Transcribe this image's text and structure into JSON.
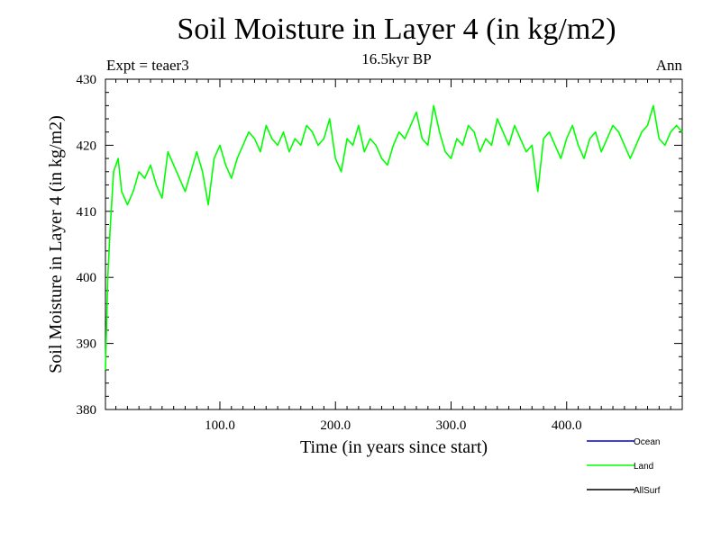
{
  "chart_data": {
    "type": "line",
    "title": "Soil Moisture in Layer 4 (in kg/m2)",
    "subtitle": "16.5kyr BP",
    "experiment": "Expt = teaer3",
    "season": "Ann",
    "xlabel": "Time (in years since start)",
    "ylabel": "Soil Moisture in Layer 4 (in kg/m2)",
    "xlim": [
      1,
      500
    ],
    "ylim": [
      380,
      430
    ],
    "xticks": [
      100,
      200,
      300,
      400
    ],
    "xtick_labels": [
      "100.0",
      "200.0",
      "300.0",
      "400.0"
    ],
    "yticks": [
      380,
      390,
      400,
      410,
      420,
      430
    ],
    "ytick_labels": [
      "380",
      "390",
      "400",
      "410",
      "420",
      "430"
    ],
    "legend": [
      "Ocean",
      "Land",
      "AllSurf"
    ],
    "legend_position": "bottom-right",
    "series": [
      {
        "name": "Land",
        "color": "#00ff00",
        "x": [
          1,
          3,
          5,
          8,
          12,
          15,
          20,
          25,
          30,
          35,
          40,
          45,
          50,
          55,
          60,
          65,
          70,
          75,
          80,
          85,
          90,
          95,
          100,
          105,
          110,
          115,
          120,
          125,
          130,
          135,
          140,
          145,
          150,
          155,
          160,
          165,
          170,
          175,
          180,
          185,
          190,
          195,
          200,
          205,
          210,
          215,
          220,
          225,
          230,
          235,
          240,
          245,
          250,
          255,
          260,
          265,
          270,
          275,
          280,
          285,
          290,
          295,
          300,
          305,
          310,
          315,
          320,
          325,
          330,
          335,
          340,
          345,
          350,
          355,
          360,
          365,
          370,
          375,
          380,
          385,
          390,
          395,
          400,
          405,
          410,
          415,
          420,
          425,
          430,
          435,
          440,
          445,
          450,
          455,
          460,
          465,
          470,
          475,
          480,
          485,
          490,
          495,
          500
        ],
        "values": [
          386,
          400,
          407,
          416,
          418,
          413,
          411,
          413,
          416,
          415,
          417,
          414,
          412,
          419,
          417,
          415,
          413,
          416,
          419,
          416,
          411,
          418,
          420,
          417,
          415,
          418,
          420,
          422,
          421,
          419,
          423,
          421,
          420,
          422,
          419,
          421,
          420,
          423,
          422,
          420,
          421,
          424,
          418,
          416,
          421,
          420,
          423,
          419,
          421,
          420,
          418,
          417,
          420,
          422,
          421,
          423,
          425,
          421,
          420,
          426,
          422,
          419,
          418,
          421,
          420,
          423,
          422,
          419,
          421,
          420,
          424,
          422,
          420,
          423,
          421,
          419,
          420,
          413,
          421,
          422,
          420,
          418,
          421,
          423,
          420,
          418,
          421,
          422,
          419,
          421,
          423,
          422,
          420,
          418,
          420,
          422,
          423,
          426,
          421,
          420,
          422,
          423,
          422
        ]
      }
    ]
  }
}
